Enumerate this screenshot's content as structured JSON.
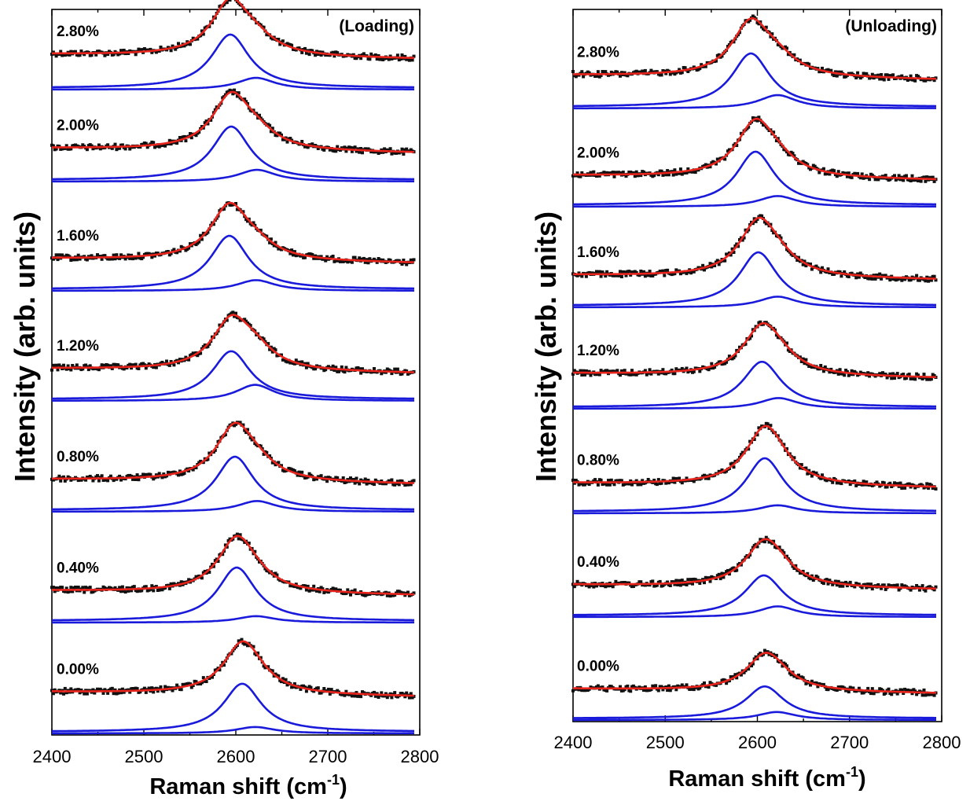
{
  "chart_data": [
    {
      "type": "line",
      "title": "(Loading)",
      "xlabel": "Raman shift (cm",
      "xlabel_sup": "-1",
      "xlabel_close": ")",
      "ylabel": "Intensity (arb. units)",
      "xlim": [
        2400,
        2800
      ],
      "xticks": [
        "2400",
        "2500",
        "2600",
        "2700",
        "2800"
      ],
      "y_ticks_shown": false,
      "grid": false,
      "data_range": [
        2400,
        2795
      ],
      "series_colors": {
        "data": "#111111",
        "fit": "#e8241c",
        "components": "#1a1adb"
      },
      "spectra": [
        {
          "label": "2.80%",
          "peak1_center": 2594,
          "peak1_height": 1.0,
          "peak2_center": 2622,
          "peak2_height": 0.22,
          "baseline": 0.55
        },
        {
          "label": "2.00%",
          "peak1_center": 2595,
          "peak1_height": 1.0,
          "peak2_center": 2623,
          "peak2_height": 0.22,
          "baseline": 0.45
        },
        {
          "label": "1.60%",
          "peak1_center": 2593,
          "peak1_height": 1.0,
          "peak2_center": 2622,
          "peak2_height": 0.2,
          "baseline": 0.4
        },
        {
          "label": "1.20%",
          "peak1_center": 2595,
          "peak1_height": 0.9,
          "peak2_center": 2621,
          "peak2_height": 0.3,
          "baseline": 0.4
        },
        {
          "label": "0.80%",
          "peak1_center": 2599,
          "peak1_height": 1.0,
          "peak2_center": 2623,
          "peak2_height": 0.2,
          "baseline": 0.4
        },
        {
          "label": "0.40%",
          "peak1_center": 2601,
          "peak1_height": 1.0,
          "peak2_center": 2622,
          "peak2_height": 0.12,
          "baseline": 0.38
        },
        {
          "label": "0.00%",
          "peak1_center": 2607,
          "peak1_height": 0.9,
          "peak2_center": 2621,
          "peak2_height": 0.12,
          "baseline": 0.85
        }
      ]
    },
    {
      "type": "line",
      "title": "(Unloading)",
      "xlabel": "Raman shift (cm",
      "xlabel_sup": "-1",
      "xlabel_close": ")",
      "ylabel": "Intensity (arb. units)",
      "xlim": [
        2400,
        2800
      ],
      "xticks": [
        "2400",
        "2500",
        "2600",
        "2700",
        "2800"
      ],
      "y_ticks_shown": false,
      "grid": false,
      "data_range": [
        2400,
        2795
      ],
      "series_colors": {
        "data": "#111111",
        "fit": "#e8241c",
        "components": "#1a1adb"
      },
      "spectra": [
        {
          "label": "2.80%",
          "peak1_center": 2593,
          "peak1_height": 1.0,
          "peak2_center": 2622,
          "peak2_height": 0.25,
          "baseline": 0.45
        },
        {
          "label": "2.00%",
          "peak1_center": 2598,
          "peak1_height": 1.0,
          "peak2_center": 2622,
          "peak2_height": 0.2,
          "baseline": 0.35
        },
        {
          "label": "1.60%",
          "peak1_center": 2601,
          "peak1_height": 1.0,
          "peak2_center": 2622,
          "peak2_height": 0.2,
          "baseline": 0.4
        },
        {
          "label": "1.20%",
          "peak1_center": 2605,
          "peak1_height": 0.85,
          "peak2_center": 2623,
          "peak2_height": 0.2,
          "baseline": 0.55
        },
        {
          "label": "0.80%",
          "peak1_center": 2608,
          "peak1_height": 1.0,
          "peak2_center": 2622,
          "peak2_height": 0.15,
          "baseline": 0.3
        },
        {
          "label": "0.40%",
          "peak1_center": 2607,
          "peak1_height": 0.75,
          "peak2_center": 2622,
          "peak2_height": 0.2,
          "baseline": 0.4
        },
        {
          "label": "0.00%",
          "peak1_center": 2608,
          "peak1_height": 0.6,
          "peak2_center": 2621,
          "peak2_height": 0.15,
          "baseline": 0.35
        }
      ]
    }
  ]
}
